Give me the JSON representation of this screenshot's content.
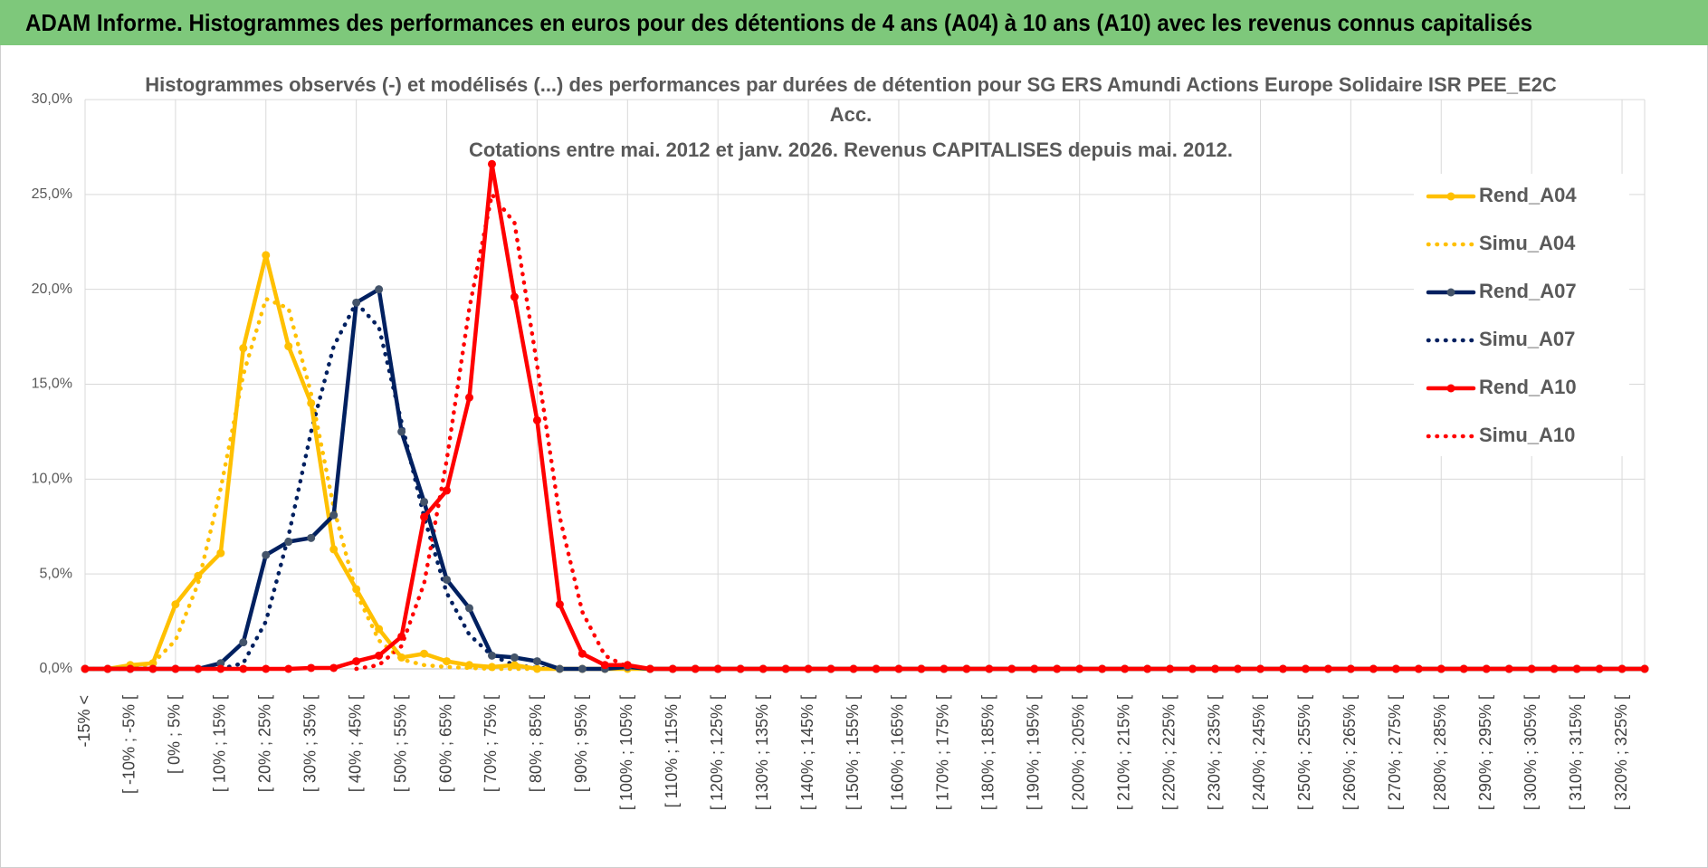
{
  "header": {
    "title": "ADAM Informe. Histogrammes des performances en euros pour des détentions de 4 ans (A04) à 10 ans (A10) avec les revenus connus capitalisés"
  },
  "chart_data": {
    "type": "line",
    "title": [
      "Histogrammes observés (-) et modélisés (...) des performances par durées de détention pour SG ERS Amundi Actions Europe Solidaire ISR PEE_E2C",
      "Acc.",
      "Cotations entre mai. 2012 et janv. 2026. Revenus CAPITALISES depuis mai. 2012."
    ],
    "categories": [
      "-15% <",
      null,
      "[ -10% ; -5% [",
      null,
      "[ 0% ; 5% [",
      null,
      "[ 10% ; 15% [",
      null,
      "[ 20% ; 25% [",
      null,
      "[ 30% ; 35% [",
      null,
      "[ 40% ; 45% [",
      null,
      "[ 50% ; 55% [",
      null,
      "[ 60% ; 65% [",
      null,
      "[ 70% ; 75% [",
      null,
      "[ 80% ; 85% [",
      null,
      "[ 90% ; 95% [",
      null,
      "[ 100% ; 105% [",
      null,
      "[ 110% ; 115% [",
      null,
      "[ 120% ; 125% [",
      null,
      "[ 130% ; 135% [",
      null,
      "[ 140% ; 145% [",
      null,
      "[ 150% ; 155% [",
      null,
      "[ 160% ; 165% [",
      null,
      "[ 170% ; 175% [",
      null,
      "[ 180% ; 185% [",
      null,
      "[ 190% ; 195% [",
      null,
      "[ 200% ; 205% [",
      null,
      "[ 210% ; 215% [",
      null,
      "[ 220% ; 225% [",
      null,
      "[ 230% ; 235% [",
      null,
      "[ 240% ; 245% [",
      null,
      "[ 250% ; 255% [",
      null,
      "[ 260% ; 265% [",
      null,
      "[ 270% ; 275% [",
      null,
      "[ 280% ; 285% [",
      null,
      "[ 290% ; 295% [",
      null,
      "[ 300% ; 305% [",
      null,
      "[ 310% ; 315% [",
      null,
      "[ 320% ; 325% [",
      null
    ],
    "series": [
      {
        "name": "Rend_A04",
        "color": "#ffc000",
        "style": "solid",
        "marker": true,
        "values": [
          0,
          0,
          0.2,
          0.3,
          3.4,
          4.9,
          6.1,
          16.9,
          21.8,
          17.0,
          14.0,
          6.3,
          4.2,
          2.1,
          0.6,
          0.8,
          0.4,
          0.2,
          0.1,
          0.2,
          0,
          0,
          0,
          0,
          0,
          0,
          0,
          0,
          0,
          0,
          0,
          0,
          0,
          0,
          0,
          0,
          0,
          0,
          0,
          0,
          0,
          0,
          0,
          0,
          0,
          0,
          0,
          0,
          0,
          0,
          0,
          0,
          0,
          0,
          0,
          0,
          0,
          0,
          0,
          0,
          0,
          0,
          0,
          0,
          0,
          0,
          0,
          0,
          0,
          0
        ]
      },
      {
        "name": "Simu_A04",
        "color": "#ffc000",
        "style": "dotted",
        "marker": false,
        "values": [
          0,
          0,
          0,
          0.3,
          1.5,
          4.5,
          9.5,
          15.5,
          19.5,
          19.0,
          14.5,
          8.5,
          4.0,
          1.5,
          0.5,
          0.2,
          0.1,
          0.05,
          0,
          0,
          0,
          null,
          null,
          null,
          null,
          null,
          null,
          null,
          null,
          null,
          null,
          null,
          null,
          null,
          null,
          null,
          null,
          null,
          null,
          null,
          null,
          null,
          null,
          null,
          null,
          null,
          null,
          null,
          null,
          null,
          null,
          null,
          null,
          null,
          null,
          null,
          null,
          null,
          null,
          null,
          null,
          null,
          null,
          null,
          null,
          null,
          null,
          null,
          null,
          null
        ]
      },
      {
        "name": "Rend_A07",
        "color": "#002060",
        "style": "solid",
        "marker": true,
        "values": [
          0,
          0,
          0,
          0,
          0,
          0,
          0.3,
          1.4,
          6.0,
          6.7,
          6.9,
          8.1,
          19.3,
          20.0,
          12.5,
          8.8,
          4.7,
          3.2,
          0.7,
          0.6,
          0.4,
          0,
          0,
          0,
          0.1,
          0,
          0,
          0,
          0,
          0,
          0,
          0,
          0,
          0,
          0,
          0,
          0,
          0,
          0,
          0,
          0,
          0,
          0,
          0,
          0,
          0,
          0,
          0,
          0,
          0,
          0,
          0,
          0,
          0,
          0,
          0,
          0,
          0,
          0,
          0,
          0,
          0,
          0,
          0,
          0,
          0,
          0,
          0,
          0,
          0
        ]
      },
      {
        "name": "Simu_A07",
        "color": "#002060",
        "style": "dotted",
        "marker": false,
        "values": [
          null,
          null,
          null,
          null,
          null,
          null,
          0,
          0.3,
          2.5,
          7.0,
          12.5,
          17.0,
          19.3,
          18.0,
          13.0,
          8.0,
          4.0,
          1.8,
          0.7,
          0.2,
          0.05,
          0,
          null,
          null,
          null,
          null,
          null,
          null,
          null,
          null,
          null,
          null,
          null,
          null,
          null,
          null,
          null,
          null,
          null,
          null,
          null,
          null,
          null,
          null,
          null,
          null,
          null,
          null,
          null,
          null,
          null,
          null,
          null,
          null,
          null,
          null,
          null,
          null,
          null,
          null,
          null,
          null,
          null,
          null,
          null,
          null,
          null,
          null,
          null,
          null
        ]
      },
      {
        "name": "Rend_A10",
        "color": "#ff0000",
        "style": "solid",
        "marker": true,
        "values": [
          0,
          0,
          0,
          0,
          0,
          0,
          0,
          0,
          0,
          0,
          0.05,
          0.05,
          0.4,
          0.7,
          1.7,
          8.0,
          9.4,
          14.3,
          26.6,
          19.6,
          13.1,
          3.4,
          0.8,
          0.2,
          0.2,
          0,
          0,
          0,
          0,
          0,
          0,
          0,
          0,
          0,
          0,
          0,
          0,
          0,
          0,
          0,
          0,
          0,
          0,
          0,
          0,
          0,
          0,
          0,
          0,
          0,
          0,
          0,
          0,
          0,
          0,
          0,
          0,
          0,
          0,
          0,
          0,
          0,
          0,
          0,
          0,
          0,
          0,
          0,
          0,
          0
        ]
      },
      {
        "name": "Simu_A10",
        "color": "#ff0000",
        "style": "dotted",
        "marker": false,
        "values": [
          null,
          null,
          null,
          null,
          null,
          null,
          null,
          null,
          null,
          null,
          null,
          null,
          0,
          0.2,
          1.2,
          4.5,
          11.0,
          19.0,
          25.0,
          23.5,
          16.0,
          8.0,
          3.0,
          0.7,
          0.1,
          0,
          null,
          null,
          null,
          null,
          null,
          null,
          null,
          null,
          null,
          null,
          null,
          null,
          null,
          null,
          null,
          null,
          null,
          null,
          null,
          null,
          null,
          null,
          null,
          null,
          null,
          null,
          null,
          null,
          null,
          null,
          null,
          null,
          null,
          null,
          null,
          null,
          null,
          null,
          null,
          null,
          null,
          null,
          null,
          null
        ]
      }
    ],
    "ylim": [
      0,
      30
    ],
    "yticks": [
      {
        "value": 0,
        "label": "0,0%"
      },
      {
        "value": 5,
        "label": "5,0%"
      },
      {
        "value": 10,
        "label": "10,0%"
      },
      {
        "value": 15,
        "label": "15,0%"
      },
      {
        "value": 20,
        "label": "20,0%"
      },
      {
        "value": 25,
        "label": "25,0%"
      },
      {
        "value": 30,
        "label": "30,0%"
      }
    ],
    "grid": true,
    "legend": "upper right"
  }
}
